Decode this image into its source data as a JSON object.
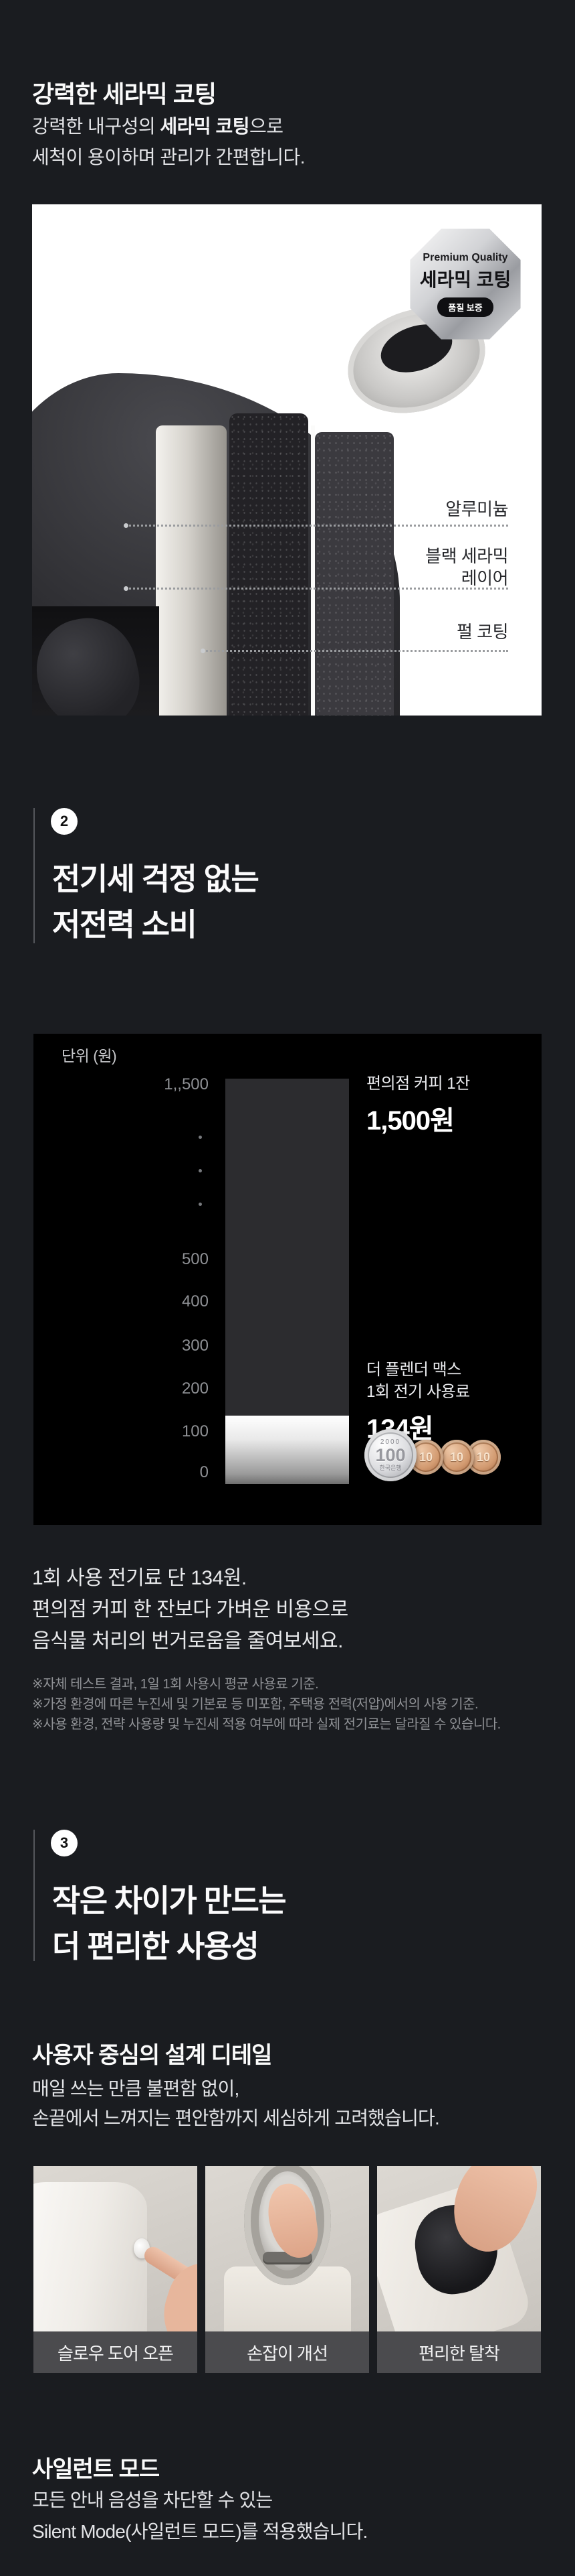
{
  "page": {
    "background": "#1a1c20",
    "panel_background": "#000000",
    "accent_bar_dark": "#2c2c2f"
  },
  "section1": {
    "title": "강력한 세라믹 코팅",
    "body_line1": {
      "prefix": "강력한 내구성의 ",
      "bold": "세라믹 코팅",
      "suffix": "으로"
    },
    "body_line2": "세척이 용이하며 관리가 간편합니다.",
    "hero": {
      "badge": {
        "top_label": "Premium Quality",
        "main_label": "세라믹 코팅",
        "pill_label": "품질 보증"
      },
      "layer_labels": [
        {
          "lines": [
            "알루미늄"
          ]
        },
        {
          "lines": [
            "블랙 세라믹",
            "레이어"
          ]
        },
        {
          "lines": [
            "펄 코팅"
          ]
        }
      ]
    }
  },
  "section2": {
    "number": "2",
    "title_lines": [
      "전기세 걱정 없는",
      "저전력 소비"
    ],
    "body_lines": [
      "1회 사용 전기료 단 134원.",
      "편의점 커피 한 잔보다 가벼운 비용으로",
      "음식물 처리의 번거로움을 줄여보세요."
    ],
    "footnotes": [
      "※자체 테스트 결과, 1일 1회 사용시 평균 사용료 기준.",
      "※가정 환경에 따른 누진세 및 기본료 등 미포함, 주택용 전력(저압)에서의 사용 기준.",
      "※사용 환경, 전략 사용량 및 누진세 적용 여부에 따라 실제 전기료는 달라질 수 있습니다."
    ]
  },
  "chart_data": {
    "type": "bar",
    "title": "단위 (원)",
    "ylabel": "원",
    "ylim": [
      0,
      1500
    ],
    "axis_break_between": [
      500,
      1500
    ],
    "yticks": [
      1500,
      500,
      400,
      300,
      200,
      100,
      0
    ],
    "ytick_labels": [
      "1,,500",
      "500",
      "400",
      "300",
      "200",
      "100",
      "0"
    ],
    "grid": false,
    "categories": [
      "편의점 커피 1잔",
      "더 플렌더 맥스 1회 전기 사용료"
    ],
    "values": [
      1500,
      134
    ],
    "bar_style": "single stacked column: dark gray total of 1,500원 with metallic gradient segment of 134원 at the bottom",
    "annotations": [
      {
        "lines": [
          "편의점 커피 1잔"
        ],
        "value_text": "1,500원"
      },
      {
        "lines": [
          "더 플렌더 맥스",
          "1회 전기 사용료"
        ],
        "value_text": "134원"
      }
    ],
    "coins": [
      {
        "denomination": "100",
        "top_text": "2000",
        "bottom_text": "한국은행",
        "metal": "silver"
      },
      {
        "denomination": "10",
        "top_text": "",
        "bottom_text": "",
        "metal": "copper"
      },
      {
        "denomination": "10",
        "top_text": "",
        "bottom_text": "",
        "metal": "copper"
      },
      {
        "denomination": "10",
        "top_text": "",
        "bottom_text": "",
        "metal": "copper"
      }
    ]
  },
  "section3": {
    "number": "3",
    "title_lines": [
      "작은 차이가 만드는",
      "더 편리한 사용성"
    ],
    "design_details": {
      "title": "사용자 중심의 설계 디테일",
      "body_lines": [
        "매일 쓰는 만큼 불편함 없이,",
        "손끝에서 느껴지는 편안함까지 세심하게 고려했습니다."
      ],
      "tiles": [
        {
          "caption": "슬로우 도어 오픈"
        },
        {
          "caption": "손잡이 개선"
        },
        {
          "caption": "편리한 탈착"
        }
      ]
    },
    "silent_mode": {
      "title": "사일런트 모드",
      "body_lines": [
        "모든 안내 음성을 차단할 수 있는",
        "Silent Mode(사일런트 모드)를 적용했습니다."
      ]
    }
  }
}
